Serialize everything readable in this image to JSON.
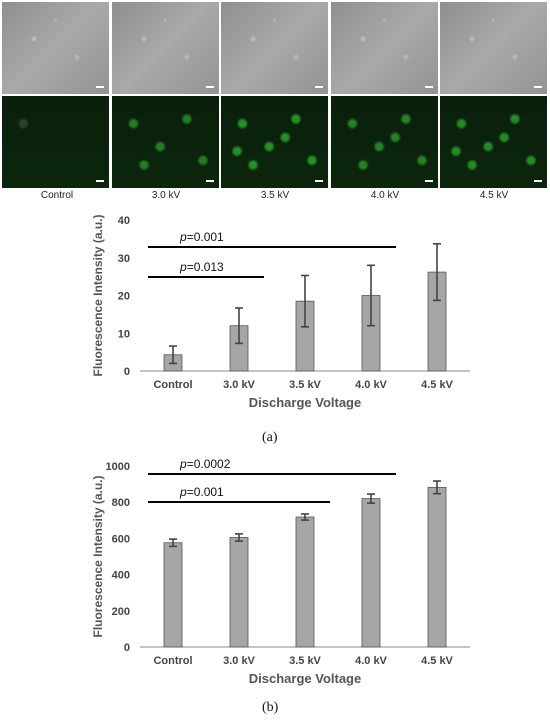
{
  "micrographs": {
    "condition_labels": [
      "Control",
      "3.0 kV",
      "3.5 kV",
      "4.0 kV",
      "4.5 kV"
    ],
    "fluorescence_levels": [
      0.08,
      0.45,
      0.6,
      0.5,
      0.55
    ]
  },
  "panel_a_label": "(a)",
  "panel_b_label": "(b)",
  "chart_data": [
    {
      "type": "bar",
      "categories": [
        "Control",
        "3.0 kV",
        "3.5 kV",
        "4.0 kV",
        "4.5 kV"
      ],
      "values": [
        4.3,
        12.0,
        18.5,
        20.0,
        26.2
      ],
      "errors": [
        2.3,
        4.7,
        6.8,
        8.0,
        7.5
      ],
      "xlabel": "Discharge Voltage",
      "ylabel": "Fluorescence Intensity (a.u.)",
      "ylim": [
        0,
        40
      ],
      "yticks": [
        0,
        10,
        20,
        30,
        40
      ],
      "annotations": [
        {
          "italic": "p",
          "text": "=0.001",
          "from": "Control",
          "to": "4.0 kV"
        },
        {
          "italic": "p",
          "text": "=0.013",
          "from": "Control",
          "to": "3.0 kV"
        }
      ]
    },
    {
      "type": "bar",
      "categories": [
        "Control",
        "3.0 kV",
        "3.5 kV",
        "4.0 kV",
        "4.5 kV"
      ],
      "values": [
        576,
        605,
        718,
        820,
        882
      ],
      "errors": [
        20,
        20,
        17,
        25,
        35
      ],
      "xlabel": "Discharge Voltage",
      "ylabel": "Fluorescence Intensity (a.u.)",
      "ylim": [
        0,
        1000
      ],
      "yticks": [
        0,
        200,
        400,
        600,
        800,
        1000
      ],
      "annotations": [
        {
          "italic": "p",
          "text": "=0.0002",
          "from": "Control",
          "to": "4.0 kV"
        },
        {
          "italic": "p",
          "text": "=0.001",
          "from": "Control",
          "to": "3.5 kV"
        }
      ]
    }
  ]
}
